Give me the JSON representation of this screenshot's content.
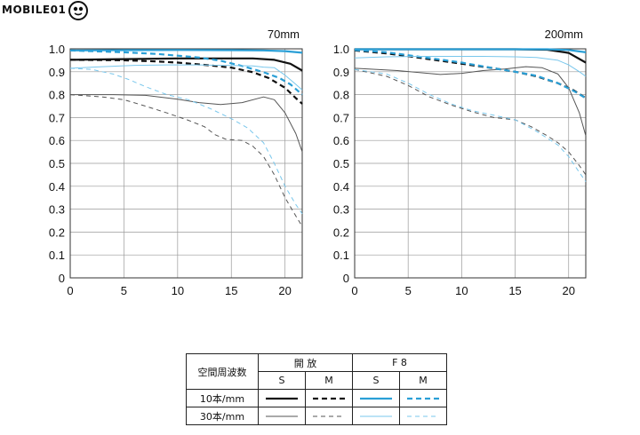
{
  "brand": {
    "text": "MOBILE01"
  },
  "chart_data": [
    {
      "type": "line",
      "title": "70mm",
      "xlim": [
        0,
        21.6
      ],
      "ylim": [
        0,
        1.0
      ],
      "xticks": [
        "0",
        "5",
        "10",
        "15",
        "20"
      ],
      "yticks": [
        "0",
        "0.1",
        "0.2",
        "0.3",
        "0.4",
        "0.5",
        "0.6",
        "0.7",
        "0.8",
        "0.9",
        "1.0"
      ],
      "grid": true,
      "series": [
        {
          "key": "open_10_s",
          "color": "#111111",
          "width": 2.2,
          "dash": "",
          "points": [
            [
              0,
              0.952
            ],
            [
              5,
              0.955
            ],
            [
              10,
              0.958
            ],
            [
              14,
              0.958
            ],
            [
              17,
              0.958
            ],
            [
              19,
              0.952
            ],
            [
              20.5,
              0.935
            ],
            [
              21.6,
              0.905
            ]
          ]
        },
        {
          "key": "open_10_m",
          "color": "#111111",
          "width": 2.2,
          "dash": "6,4",
          "points": [
            [
              0,
              0.952
            ],
            [
              5,
              0.95
            ],
            [
              8,
              0.945
            ],
            [
              10,
              0.94
            ],
            [
              13,
              0.928
            ],
            [
              15,
              0.918
            ],
            [
              17,
              0.898
            ],
            [
              18.5,
              0.872
            ],
            [
              20,
              0.83
            ],
            [
              21,
              0.785
            ],
            [
              21.6,
              0.76
            ]
          ]
        },
        {
          "key": "open_30_s",
          "color": "#555555",
          "width": 1.0,
          "dash": "",
          "points": [
            [
              0,
              0.8
            ],
            [
              4,
              0.8
            ],
            [
              7,
              0.797
            ],
            [
              10,
              0.78
            ],
            [
              12,
              0.765
            ],
            [
              14,
              0.757
            ],
            [
              16,
              0.765
            ],
            [
              18,
              0.79
            ],
            [
              19,
              0.778
            ],
            [
              20,
              0.72
            ],
            [
              21,
              0.63
            ],
            [
              21.6,
              0.55
            ]
          ]
        },
        {
          "key": "open_30_m",
          "color": "#555555",
          "width": 1.0,
          "dash": "5,4",
          "points": [
            [
              0,
              0.8
            ],
            [
              3,
              0.79
            ],
            [
              5,
              0.778
            ],
            [
              7,
              0.75
            ],
            [
              9,
              0.72
            ],
            [
              11,
              0.688
            ],
            [
              12.5,
              0.66
            ],
            [
              13.5,
              0.625
            ],
            [
              14.5,
              0.605
            ],
            [
              16,
              0.6
            ],
            [
              17,
              0.575
            ],
            [
              18,
              0.53
            ],
            [
              19,
              0.45
            ],
            [
              20,
              0.35
            ],
            [
              21,
              0.27
            ],
            [
              21.6,
              0.225
            ]
          ]
        },
        {
          "key": "f8_10_s",
          "color": "#2a9fd6",
          "width": 2.2,
          "dash": "",
          "points": [
            [
              0,
              0.993
            ],
            [
              5,
              0.994
            ],
            [
              10,
              0.995
            ],
            [
              15,
              0.994
            ],
            [
              18,
              0.993
            ],
            [
              20,
              0.99
            ],
            [
              21.6,
              0.983
            ]
          ]
        },
        {
          "key": "f8_10_m",
          "color": "#2a9fd6",
          "width": 2.2,
          "dash": "6,4",
          "points": [
            [
              0,
              0.993
            ],
            [
              5,
              0.985
            ],
            [
              8,
              0.978
            ],
            [
              10,
              0.97
            ],
            [
              12,
              0.962
            ],
            [
              14,
              0.948
            ],
            [
              16,
              0.925
            ],
            [
              18,
              0.898
            ],
            [
              19.5,
              0.872
            ],
            [
              20.5,
              0.845
            ],
            [
              21.6,
              0.8
            ]
          ]
        },
        {
          "key": "f8_30_s",
          "color": "#79c7ec",
          "width": 1.0,
          "dash": "",
          "points": [
            [
              0,
              0.915
            ],
            [
              3,
              0.922
            ],
            [
              6,
              0.928
            ],
            [
              9,
              0.93
            ],
            [
              12,
              0.93
            ],
            [
              15,
              0.927
            ],
            [
              17,
              0.925
            ],
            [
              18,
              0.92
            ],
            [
              19,
              0.918
            ],
            [
              20,
              0.885
            ],
            [
              21,
              0.845
            ],
            [
              21.6,
              0.82
            ]
          ]
        },
        {
          "key": "f8_30_m",
          "color": "#79c7ec",
          "width": 1.0,
          "dash": "5,4",
          "points": [
            [
              0,
              0.915
            ],
            [
              2,
              0.91
            ],
            [
              4,
              0.89
            ],
            [
              5.5,
              0.865
            ],
            [
              7,
              0.835
            ],
            [
              9,
              0.8
            ],
            [
              11,
              0.778
            ],
            [
              13,
              0.74
            ],
            [
              15,
              0.695
            ],
            [
              16.5,
              0.655
            ],
            [
              18,
              0.59
            ],
            [
              19,
              0.5
            ],
            [
              20,
              0.4
            ],
            [
              21,
              0.32
            ],
            [
              21.6,
              0.28
            ]
          ]
        }
      ]
    },
    {
      "type": "line",
      "title": "200mm",
      "xlim": [
        0,
        21.6
      ],
      "ylim": [
        0,
        1.0
      ],
      "xticks": [
        "0",
        "5",
        "10",
        "15",
        "20"
      ],
      "yticks": [
        "0",
        "0.1",
        "0.2",
        "0.3",
        "0.4",
        "0.5",
        "0.6",
        "0.7",
        "0.8",
        "0.9",
        "1.0"
      ],
      "grid": true,
      "series": [
        {
          "key": "open_10_s",
          "color": "#111111",
          "width": 2.2,
          "dash": "",
          "points": [
            [
              0,
              0.998
            ],
            [
              5,
              0.998
            ],
            [
              10,
              0.998
            ],
            [
              15,
              0.998
            ],
            [
              18,
              0.996
            ],
            [
              20,
              0.982
            ],
            [
              21.6,
              0.94
            ]
          ]
        },
        {
          "key": "open_10_m",
          "color": "#111111",
          "width": 2.2,
          "dash": "6,4",
          "points": [
            [
              0,
              0.993
            ],
            [
              3,
              0.98
            ],
            [
              5,
              0.968
            ],
            [
              8,
              0.948
            ],
            [
              10,
              0.935
            ],
            [
              13,
              0.915
            ],
            [
              15,
              0.9
            ],
            [
              17,
              0.88
            ],
            [
              19,
              0.85
            ],
            [
              20.5,
              0.818
            ],
            [
              21.6,
              0.785
            ]
          ]
        },
        {
          "key": "open_30_s",
          "color": "#555555",
          "width": 1.0,
          "dash": "",
          "points": [
            [
              0,
              0.915
            ],
            [
              4,
              0.905
            ],
            [
              8,
              0.888
            ],
            [
              10,
              0.893
            ],
            [
              12,
              0.905
            ],
            [
              14,
              0.912
            ],
            [
              16,
              0.922
            ],
            [
              17.5,
              0.918
            ],
            [
              19,
              0.89
            ],
            [
              20,
              0.83
            ],
            [
              21,
              0.72
            ],
            [
              21.6,
              0.62
            ]
          ]
        },
        {
          "key": "open_30_m",
          "color": "#555555",
          "width": 1.0,
          "dash": "5,4",
          "points": [
            [
              0,
              0.91
            ],
            [
              3,
              0.88
            ],
            [
              5,
              0.84
            ],
            [
              7,
              0.79
            ],
            [
              9,
              0.755
            ],
            [
              11,
              0.725
            ],
            [
              13,
              0.7
            ],
            [
              15,
              0.69
            ],
            [
              16.5,
              0.66
            ],
            [
              18,
              0.62
            ],
            [
              19,
              0.59
            ],
            [
              20,
              0.55
            ],
            [
              21,
              0.49
            ],
            [
              21.6,
              0.45
            ]
          ]
        },
        {
          "key": "f8_10_s",
          "color": "#2a9fd6",
          "width": 2.2,
          "dash": "",
          "points": [
            [
              0,
              0.998
            ],
            [
              5,
              0.998
            ],
            [
              10,
              0.998
            ],
            [
              15,
              0.998
            ],
            [
              18,
              0.998
            ],
            [
              20,
              0.995
            ],
            [
              21.6,
              0.985
            ]
          ]
        },
        {
          "key": "f8_10_m",
          "color": "#2a9fd6",
          "width": 2.2,
          "dash": "6,4",
          "points": [
            [
              0,
              0.995
            ],
            [
              3,
              0.985
            ],
            [
              5,
              0.972
            ],
            [
              8,
              0.953
            ],
            [
              10,
              0.94
            ],
            [
              13,
              0.915
            ],
            [
              15,
              0.9
            ],
            [
              17,
              0.882
            ],
            [
              19,
              0.85
            ],
            [
              20.5,
              0.815
            ],
            [
              21.6,
              0.785
            ]
          ]
        },
        {
          "key": "f8_30_s",
          "color": "#79c7ec",
          "width": 1.0,
          "dash": "",
          "points": [
            [
              0,
              0.96
            ],
            [
              3,
              0.965
            ],
            [
              6,
              0.967
            ],
            [
              9,
              0.967
            ],
            [
              12,
              0.967
            ],
            [
              15,
              0.965
            ],
            [
              17,
              0.962
            ],
            [
              19,
              0.95
            ],
            [
              20,
              0.93
            ],
            [
              21,
              0.9
            ],
            [
              21.6,
              0.88
            ]
          ]
        },
        {
          "key": "f8_30_m",
          "color": "#79c7ec",
          "width": 1.0,
          "dash": "5,4",
          "points": [
            [
              0,
              0.91
            ],
            [
              3,
              0.89
            ],
            [
              5,
              0.85
            ],
            [
              7,
              0.8
            ],
            [
              9,
              0.76
            ],
            [
              11,
              0.73
            ],
            [
              13,
              0.71
            ],
            [
              15,
              0.69
            ],
            [
              17,
              0.64
            ],
            [
              19,
              0.58
            ],
            [
              20,
              0.53
            ],
            [
              21,
              0.46
            ],
            [
              21.6,
              0.42
            ]
          ]
        }
      ]
    }
  ],
  "legend": {
    "header_label": "空間周波数",
    "group_open": "開 放",
    "group_f8": "F 8",
    "col_s": "S",
    "col_m": "M",
    "row_10": "10本/mm",
    "row_30": "30本/mm",
    "colors": {
      "open_10": "#111111",
      "open_30": "#555555",
      "f8_10": "#2a9fd6",
      "f8_30": "#79c7ec"
    }
  }
}
